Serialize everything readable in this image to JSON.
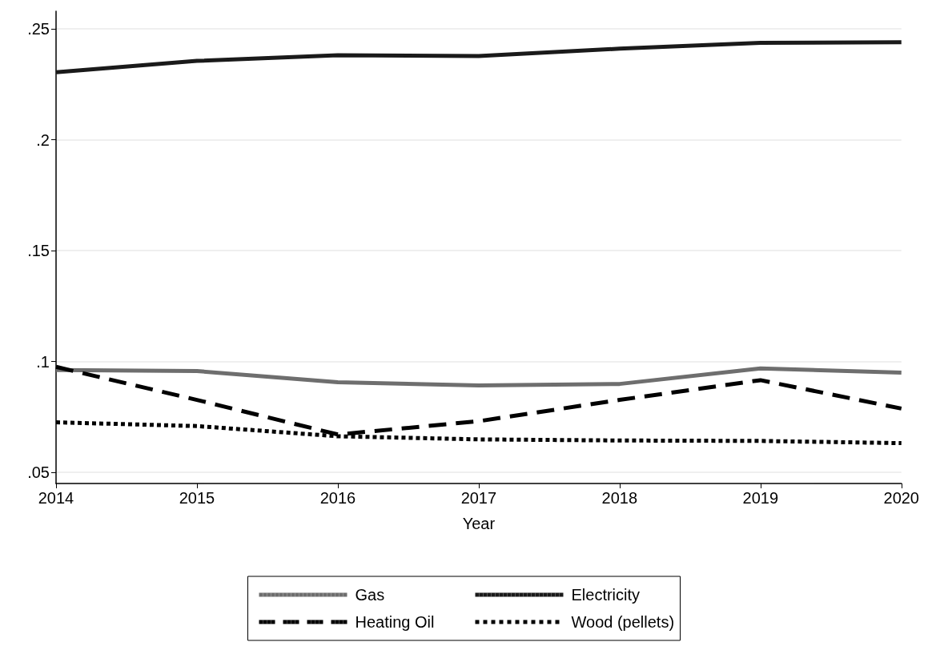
{
  "chart_data": {
    "type": "line",
    "xlabel": "Year",
    "x": [
      2014,
      2015,
      2016,
      2017,
      2018,
      2019,
      2020
    ],
    "xlim": [
      2014,
      2020
    ],
    "xticks": [
      2014,
      2015,
      2016,
      2017,
      2018,
      2019,
      2020
    ],
    "ylim": [
      0.045,
      0.258
    ],
    "yticks": [
      {
        "value": 0.05,
        "label": ".05"
      },
      {
        "value": 0.1,
        "label": ".1"
      },
      {
        "value": 0.15,
        "label": ".15"
      },
      {
        "value": 0.2,
        "label": ".2"
      },
      {
        "value": 0.25,
        "label": ".25"
      }
    ],
    "grid": "y",
    "legend": "bottom",
    "marker": "none",
    "series": [
      {
        "name": "Gas",
        "color": "#6e6e6e",
        "line_style": "solid",
        "values": [
          0.0962,
          0.0957,
          0.0907,
          0.0892,
          0.0899,
          0.0969,
          0.095
        ]
      },
      {
        "name": "Electricity",
        "color": "#1a1a1a",
        "line_style": "solid",
        "values": [
          0.2305,
          0.2356,
          0.2381,
          0.2378,
          0.2411,
          0.2437,
          0.244
        ]
      },
      {
        "name": "Heating Oil",
        "color": "#000000",
        "line_style": "dashed",
        "values": [
          0.0976,
          0.0827,
          0.0671,
          0.0731,
          0.0827,
          0.0916,
          0.0788
        ]
      },
      {
        "name": "Wood (pellets)",
        "color": "#000000",
        "line_style": "dotted",
        "values": [
          0.0726,
          0.0709,
          0.0663,
          0.0649,
          0.0644,
          0.0642,
          0.0632
        ]
      }
    ]
  }
}
